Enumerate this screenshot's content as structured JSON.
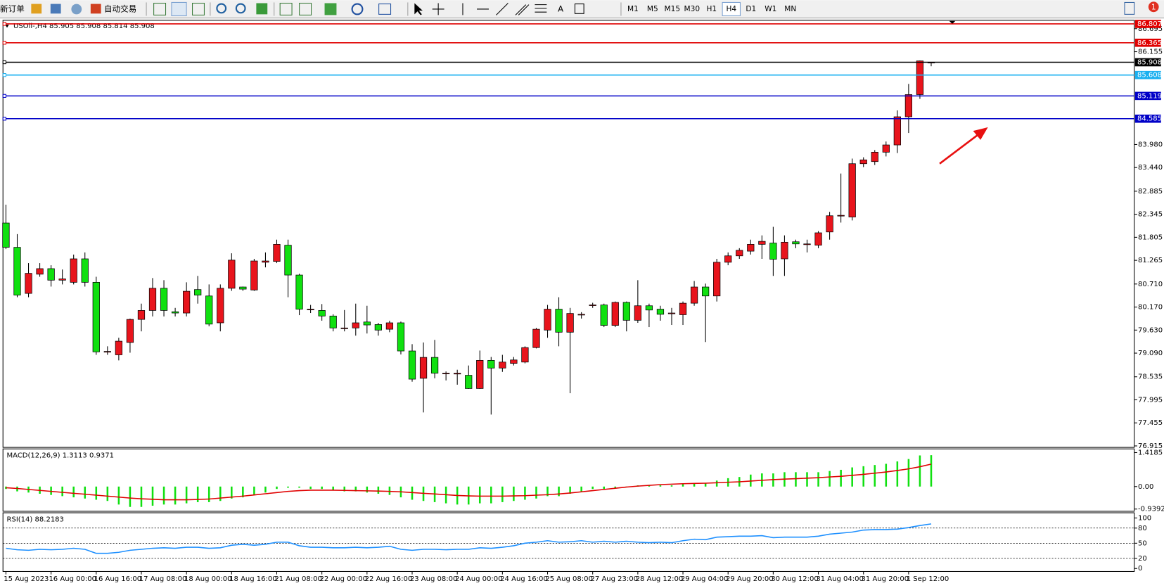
{
  "toolbar": {
    "buttons": [
      "新订单",
      "自动交易"
    ],
    "timeframes": [
      "M1",
      "M5",
      "M15",
      "M30",
      "H1",
      "H4",
      "D1",
      "W1",
      "MN"
    ],
    "active_timeframe": 5,
    "notifications": "1"
  },
  "chart_data": [
    {
      "type": "candlestick",
      "title": "USOil-,H4 85.905 85.908 85.814 85.908",
      "categories": [
        "15 Aug 2023",
        null,
        null,
        null,
        "16 Aug 00:00",
        null,
        null,
        null,
        "16 Aug 16:00",
        null,
        null,
        null,
        "17 Aug 08:00",
        null,
        null,
        null,
        "18 Aug 00:00",
        null,
        null,
        null,
        "18 Aug 16:00",
        null,
        null,
        null,
        "21 Aug 08:00",
        null,
        null,
        null,
        "22 Aug 00:00",
        null,
        null,
        null,
        "22 Aug 16:00",
        null,
        null,
        null,
        "23 Aug 08:00",
        null,
        null,
        null,
        "24 Aug 00:00",
        null,
        null,
        null,
        "24 Aug 16:00",
        null,
        null,
        null,
        "25 Aug 08:00",
        null,
        null,
        null,
        "27 Aug 23:00",
        null,
        null,
        null,
        "28 Aug 12:00",
        null,
        null,
        null,
        "29 Aug 04:00",
        null,
        null,
        null,
        "29 Aug 20:00",
        null,
        null,
        null,
        "30 Aug 12:00",
        null,
        null,
        null,
        "31 Aug 04:00",
        null,
        null,
        null,
        "31 Aug 20:00",
        null,
        null,
        null,
        "1 Sep 12:00",
        null,
        null
      ],
      "open": [
        82.14,
        81.57,
        80.49,
        80.94,
        81.07,
        80.8,
        80.75,
        81.3,
        80.75,
        79.12,
        79.05,
        79.34,
        79.88,
        80.09,
        80.61,
        80.06,
        80.03,
        80.58,
        80.43,
        79.8,
        80.61,
        80.64,
        80.57,
        81.22,
        81.24,
        81.62,
        80.92,
        80.12,
        80.09,
        79.96,
        79.68,
        79.68,
        79.82,
        79.76,
        79.65,
        79.8,
        79.14,
        78.5,
        78.99,
        78.62,
        78.6,
        78.57,
        78.26,
        78.92,
        78.74,
        78.85,
        78.88,
        79.22,
        79.63,
        80.12,
        79.58,
        80.0,
        80.22,
        80.22,
        79.74,
        80.28,
        79.86,
        80.2,
        80.12,
        80.03,
        79.99,
        80.26,
        80.64,
        80.43,
        81.22,
        81.37,
        81.48,
        81.64,
        81.67,
        81.3,
        81.7,
        81.65,
        81.62,
        81.93,
        82.31,
        82.28,
        83.53,
        83.58,
        83.8,
        83.97,
        84.63,
        85.15,
        85.905
      ],
      "high": [
        82.57,
        81.88,
        81.2,
        81.2,
        81.15,
        81.05,
        81.4,
        81.45,
        80.88,
        79.25,
        79.45,
        79.9,
        80.25,
        80.85,
        80.8,
        80.15,
        80.75,
        80.9,
        80.7,
        80.7,
        81.43,
        80.65,
        81.3,
        81.45,
        81.75,
        81.75,
        80.95,
        80.22,
        80.24,
        80.0,
        80.1,
        80.25,
        80.2,
        79.8,
        79.85,
        79.83,
        79.3,
        79.34,
        79.4,
        78.66,
        78.7,
        78.8,
        79.15,
        79.0,
        79.05,
        79.0,
        79.25,
        79.68,
        80.22,
        80.4,
        80.15,
        80.05,
        80.27,
        80.25,
        80.3,
        80.3,
        80.8,
        80.25,
        80.2,
        80.15,
        80.3,
        80.78,
        80.72,
        81.3,
        81.45,
        81.55,
        81.75,
        81.85,
        82.05,
        81.85,
        81.75,
        81.75,
        81.95,
        82.4,
        83.3,
        83.65,
        83.68,
        83.85,
        84.05,
        84.78,
        85.4,
        85.95,
        85.908
      ],
      "low": [
        81.53,
        80.4,
        80.4,
        80.88,
        80.65,
        80.7,
        80.7,
        80.65,
        79.05,
        79.05,
        78.92,
        79.1,
        79.6,
        79.95,
        79.95,
        79.95,
        79.95,
        80.25,
        79.72,
        79.6,
        80.55,
        80.55,
        80.55,
        81.1,
        81.2,
        80.4,
        79.98,
        80.03,
        79.85,
        79.6,
        79.6,
        79.5,
        79.55,
        79.5,
        79.58,
        79.06,
        78.42,
        77.7,
        78.5,
        78.45,
        78.35,
        78.25,
        78.25,
        77.65,
        78.65,
        78.8,
        78.85,
        79.2,
        79.45,
        79.25,
        78.15,
        79.9,
        80.15,
        79.7,
        79.7,
        79.6,
        79.8,
        79.7,
        79.85,
        79.75,
        79.75,
        80.2,
        79.35,
        80.3,
        81.15,
        81.3,
        81.4,
        81.3,
        80.9,
        80.9,
        81.55,
        81.45,
        81.55,
        81.75,
        82.15,
        82.2,
        83.45,
        83.5,
        83.7,
        83.78,
        84.25,
        85.05,
        85.814
      ],
      "close": [
        81.57,
        80.45,
        80.96,
        81.07,
        80.8,
        80.83,
        81.3,
        80.75,
        79.12,
        79.13,
        79.37,
        79.88,
        80.09,
        80.61,
        80.09,
        80.03,
        80.54,
        80.45,
        79.77,
        80.61,
        81.27,
        80.59,
        81.25,
        81.25,
        81.64,
        80.92,
        80.12,
        80.12,
        79.96,
        79.68,
        79.68,
        79.8,
        79.75,
        79.63,
        79.8,
        79.14,
        78.48,
        78.99,
        78.62,
        78.62,
        78.62,
        78.26,
        78.92,
        78.74,
        78.88,
        78.93,
        79.22,
        79.65,
        80.12,
        79.58,
        80.02,
        80.0,
        80.22,
        79.74,
        80.28,
        79.86,
        80.2,
        80.1,
        80.0,
        80.03,
        80.26,
        80.64,
        80.43,
        81.22,
        81.37,
        81.5,
        81.64,
        81.71,
        81.29,
        81.69,
        81.65,
        81.65,
        81.91,
        82.31,
        82.32,
        83.53,
        83.62,
        83.8,
        83.97,
        84.63,
        85.15,
        85.94,
        85.908
      ],
      "up_color": "#e8141c",
      "down_color": "#10e010",
      "ylim": [
        76.915,
        86.84
      ],
      "yticks": [
        {
          "value": 86.695,
          "label": "86.695"
        },
        {
          "value": 86.155,
          "label": "86.155"
        },
        {
          "value": 83.98,
          "label": "83.980"
        },
        {
          "value": 83.44,
          "label": "83.440"
        },
        {
          "value": 82.885,
          "label": "82.885"
        },
        {
          "value": 82.345,
          "label": "82.345"
        },
        {
          "value": 81.805,
          "label": "81.805"
        },
        {
          "value": 81.265,
          "label": "81.265"
        },
        {
          "value": 80.71,
          "label": "80.710"
        },
        {
          "value": 80.17,
          "label": "80.170"
        },
        {
          "value": 79.63,
          "label": "79.630"
        },
        {
          "value": 79.09,
          "label": "79.090"
        },
        {
          "value": 78.535,
          "label": "78.535"
        },
        {
          "value": 77.995,
          "label": "77.995"
        },
        {
          "value": 77.455,
          "label": "77.455"
        },
        {
          "value": 76.915,
          "label": "76.915"
        }
      ],
      "levels": [
        {
          "value": 86.807,
          "color": "#e00000"
        },
        {
          "value": 86.365,
          "color": "#e00000"
        },
        {
          "value": 85.908,
          "color": "#000000"
        },
        {
          "value": 85.608,
          "color": "#1ab0f0"
        },
        {
          "value": 85.119,
          "color": "#0000c8"
        },
        {
          "value": 84.585,
          "color": "#0000c8"
        }
      ]
    },
    {
      "type": "macd",
      "title": "MACD(12,26,9) 1.3113 0.9371",
      "histogram": [
        -0.1,
        -0.2,
        -0.25,
        -0.3,
        -0.35,
        -0.4,
        -0.45,
        -0.5,
        -0.55,
        -0.6,
        -0.75,
        -0.85,
        -0.85,
        -0.8,
        -0.75,
        -0.75,
        -0.7,
        -0.65,
        -0.65,
        -0.6,
        -0.5,
        -0.45,
        -0.35,
        -0.25,
        -0.1,
        -0.05,
        -0.05,
        -0.1,
        -0.1,
        -0.15,
        -0.2,
        -0.2,
        -0.25,
        -0.3,
        -0.35,
        -0.45,
        -0.55,
        -0.6,
        -0.65,
        -0.7,
        -0.75,
        -0.75,
        -0.7,
        -0.7,
        -0.65,
        -0.6,
        -0.55,
        -0.5,
        -0.4,
        -0.4,
        -0.3,
        -0.2,
        -0.1,
        -0.1,
        -0.05,
        0.0,
        0.05,
        0.05,
        0.05,
        0.05,
        0.1,
        0.15,
        0.15,
        0.25,
        0.35,
        0.4,
        0.5,
        0.55,
        0.55,
        0.6,
        0.6,
        0.6,
        0.6,
        0.65,
        0.7,
        0.8,
        0.85,
        0.9,
        0.95,
        1.05,
        1.15,
        1.3,
        1.3113
      ],
      "signal": [
        -0.05,
        -0.08,
        -0.12,
        -0.16,
        -0.2,
        -0.24,
        -0.28,
        -0.32,
        -0.36,
        -0.4,
        -0.44,
        -0.48,
        -0.51,
        -0.53,
        -0.55,
        -0.55,
        -0.55,
        -0.54,
        -0.52,
        -0.48,
        -0.44,
        -0.4,
        -0.35,
        -0.3,
        -0.25,
        -0.2,
        -0.17,
        -0.15,
        -0.15,
        -0.15,
        -0.16,
        -0.17,
        -0.18,
        -0.19,
        -0.2,
        -0.22,
        -0.25,
        -0.28,
        -0.31,
        -0.34,
        -0.37,
        -0.39,
        -0.4,
        -0.4,
        -0.4,
        -0.39,
        -0.38,
        -0.36,
        -0.34,
        -0.31,
        -0.27,
        -0.22,
        -0.17,
        -0.12,
        -0.07,
        -0.02,
        0.02,
        0.05,
        0.08,
        0.1,
        0.12,
        0.13,
        0.14,
        0.16,
        0.18,
        0.2,
        0.23,
        0.26,
        0.29,
        0.31,
        0.33,
        0.35,
        0.37,
        0.4,
        0.43,
        0.47,
        0.51,
        0.56,
        0.61,
        0.67,
        0.74,
        0.83,
        0.9371
      ],
      "hist_color": "#10e010",
      "signal_color": "#e00000",
      "ylim": [
        -0.9392,
        1.4185
      ],
      "yticks": [
        1.4185,
        {
          "value": 0,
          "label": "0.00"
        },
        -0.9392
      ]
    },
    {
      "type": "rsi",
      "title": "RSI(14) 88.2183",
      "values": [
        40,
        37,
        36,
        38,
        37,
        38,
        40,
        38,
        30,
        30,
        32,
        36,
        38,
        40,
        41,
        40,
        42,
        42,
        40,
        41,
        46,
        48,
        46,
        48,
        52,
        52,
        45,
        42,
        42,
        41,
        41,
        42,
        41,
        42,
        44,
        38,
        36,
        38,
        38,
        37,
        38,
        38,
        41,
        40,
        42,
        45,
        50,
        52,
        55,
        52,
        53,
        55,
        52,
        54,
        52,
        54,
        52,
        51,
        52,
        51,
        55,
        58,
        57,
        62,
        63,
        64,
        64,
        65,
        61,
        62,
        62,
        62,
        64,
        68,
        70,
        72,
        76,
        77,
        77,
        78,
        81,
        85,
        88.2183
      ],
      "color": "#1e90ff",
      "ylim": [
        0,
        100
      ],
      "yticks": [
        100,
        80,
        50,
        20,
        0
      ]
    }
  ]
}
